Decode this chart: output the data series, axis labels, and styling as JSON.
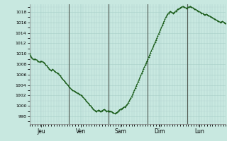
{
  "background_color": "#c8e8e0",
  "line_color": "#1a5c1a",
  "yticks": [
    998,
    1000,
    1002,
    1004,
    1006,
    1008,
    1010,
    1012,
    1014,
    1016,
    1018
  ],
  "ylim": [
    996.5,
    1019.5
  ],
  "xlabel_ticks": [
    "Jeu",
    "Ven",
    "Sam",
    "Dim",
    "Lun"
  ],
  "pressure_data": [
    1010.0,
    1009.6,
    1009.3,
    1009.1,
    1009.0,
    1008.9,
    1009.0,
    1008.9,
    1008.8,
    1008.6,
    1008.5,
    1008.4,
    1008.5,
    1008.6,
    1008.5,
    1008.4,
    1008.3,
    1008.1,
    1007.9,
    1007.7,
    1007.5,
    1007.3,
    1007.1,
    1006.9,
    1006.8,
    1006.9,
    1007.0,
    1006.8,
    1006.6,
    1006.5,
    1006.4,
    1006.3,
    1006.2,
    1006.0,
    1005.8,
    1005.5,
    1005.3,
    1005.1,
    1004.9,
    1004.7,
    1004.5,
    1004.3,
    1004.1,
    1003.9,
    1003.7,
    1003.5,
    1003.3,
    1003.1,
    1003.0,
    1002.9,
    1002.8,
    1002.7,
    1002.6,
    1002.5,
    1002.4,
    1002.3,
    1002.2,
    1002.1,
    1002.0,
    1001.8,
    1001.6,
    1001.4,
    1001.2,
    1001.0,
    1000.8,
    1000.6,
    1000.4,
    1000.2,
    1000.0,
    999.8,
    999.6,
    999.4,
    999.2,
    999.1,
    999.0,
    999.0,
    999.1,
    999.2,
    999.1,
    999.0,
    999.0,
    999.1,
    999.2,
    999.3,
    999.2,
    999.1,
    999.0,
    999.0,
    999.1,
    999.0,
    999.0,
    998.9,
    998.8,
    998.7,
    998.6,
    998.5,
    998.6,
    998.7,
    998.8,
    999.0,
    999.2,
    999.3,
    999.4,
    999.5,
    999.6,
    999.7,
    999.8,
    999.9,
    1000.1,
    1000.3,
    1000.6,
    1000.9,
    1001.2,
    1001.5,
    1001.8,
    1002.2,
    1002.6,
    1003.0,
    1003.4,
    1003.8,
    1004.2,
    1004.6,
    1005.0,
    1005.4,
    1005.8,
    1006.2,
    1006.6,
    1007.0,
    1007.4,
    1007.8,
    1008.2,
    1008.6,
    1009.0,
    1009.4,
    1009.8,
    1010.2,
    1010.6,
    1011.0,
    1011.4,
    1011.8,
    1012.2,
    1012.6,
    1013.0,
    1013.4,
    1013.8,
    1014.2,
    1014.6,
    1015.0,
    1015.4,
    1015.8,
    1016.2,
    1016.6,
    1017.0,
    1017.3,
    1017.6,
    1017.8,
    1018.0,
    1018.1,
    1018.0,
    1017.9,
    1017.8,
    1017.9,
    1018.0,
    1018.2,
    1018.3,
    1018.5,
    1018.6,
    1018.7,
    1018.8,
    1018.9,
    1019.0,
    1019.1,
    1019.0,
    1018.9,
    1018.8,
    1018.7,
    1018.8,
    1018.9,
    1019.0,
    1019.1,
    1019.0,
    1018.9,
    1018.8,
    1018.7,
    1018.6,
    1018.5,
    1018.4,
    1018.3,
    1018.2,
    1018.1,
    1018.0,
    1017.9,
    1017.8,
    1017.7,
    1017.6,
    1017.5,
    1017.5,
    1017.6,
    1017.5,
    1017.4,
    1017.3,
    1017.2,
    1017.1,
    1017.0,
    1016.9,
    1016.8,
    1016.7,
    1016.6,
    1016.5,
    1016.4,
    1016.3,
    1016.2,
    1016.1,
    1016.0,
    1016.1,
    1016.2,
    1016.1,
    1016.0,
    1015.9,
    1015.8
  ]
}
